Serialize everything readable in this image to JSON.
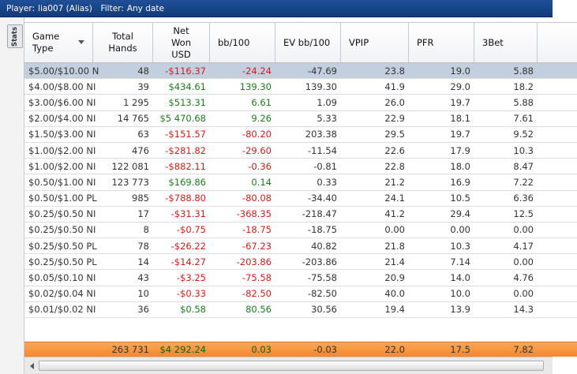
{
  "titlebar": {
    "player_label": "Player:",
    "player_value": "lia007 (Alias)",
    "filter_label": "Filter:",
    "filter_value": "Any date"
  },
  "stats_tab": "Stats",
  "columns": [
    {
      "line1": "Game",
      "line2": "Type"
    },
    {
      "line1": "Total",
      "line2": "Hands"
    },
    {
      "line1": "Net",
      "line2": "Won",
      "line3": "USD"
    },
    {
      "line1": "bb/100"
    },
    {
      "line1": "EV bb/100"
    },
    {
      "line1": "VPIP"
    },
    {
      "line1": "PFR"
    },
    {
      "line1": "3Bet"
    }
  ],
  "rows": [
    [
      "$5.00/$10.00 N",
      "48",
      "-$116.37",
      "-24.24",
      "-47.69",
      "23.8",
      "19.0",
      "5.88"
    ],
    [
      "$4.00/$8.00 NI",
      "39",
      "$434.61",
      "139.30",
      "139.30",
      "41.9",
      "29.0",
      "18.2"
    ],
    [
      "$3.00/$6.00 NI",
      "1 295",
      "$513.31",
      "6.61",
      "1.09",
      "26.0",
      "19.7",
      "5.88"
    ],
    [
      "$2.00/$4.00 NI",
      "14 765",
      "$5 470.68",
      "9.26",
      "5.33",
      "22.9",
      "18.1",
      "7.61"
    ],
    [
      "$1.50/$3.00 NI",
      "63",
      "-$151.57",
      "-80.20",
      "203.38",
      "29.5",
      "19.7",
      "9.52"
    ],
    [
      "$1.00/$2.00 NI",
      "476",
      "-$281.82",
      "-29.60",
      "-11.54",
      "22.6",
      "17.9",
      "10.3"
    ],
    [
      "$1.00/$2.00 NI",
      "122 081",
      "-$882.11",
      "-0.36",
      "-0.81",
      "22.8",
      "18.0",
      "8.47"
    ],
    [
      "$0.50/$1.00 NI",
      "123 773",
      "$169.86",
      "0.14",
      "0.33",
      "21.2",
      "16.9",
      "7.22"
    ],
    [
      "$0.50/$1.00 PL",
      "985",
      "-$788.80",
      "-80.08",
      "-34.40",
      "24.1",
      "10.5",
      "6.36"
    ],
    [
      "$0.25/$0.50 NI",
      "17",
      "-$31.31",
      "-368.35",
      "-218.47",
      "41.2",
      "29.4",
      "12.5"
    ],
    [
      "$0.25/$0.50 NI",
      "8",
      "-$0.75",
      "-18.75",
      "-18.75",
      "0.00",
      "0.00",
      "0.00"
    ],
    [
      "$0.25/$0.50 PL",
      "78",
      "-$26.22",
      "-67.23",
      "40.82",
      "21.8",
      "10.3",
      "4.17"
    ],
    [
      "$0.25/$0.50 PL",
      "14",
      "-$14.27",
      "-203.86",
      "-203.86",
      "21.4",
      "7.14",
      "0.00"
    ],
    [
      "$0.05/$0.10 NI",
      "43",
      "-$3.25",
      "-75.58",
      "-75.58",
      "20.9",
      "14.0",
      "4.76"
    ],
    [
      "$0.02/$0.04 NI",
      "10",
      "-$0.33",
      "-82.50",
      "-82.50",
      "40.0",
      "10.0",
      "0.00"
    ],
    [
      "$0.01/$0.02 NI",
      "36",
      "$0.58",
      "80.56",
      "30.56",
      "19.4",
      "13.9",
      "14.3"
    ]
  ],
  "totals": [
    "",
    "263 731",
    "$4 292.24",
    "0.03",
    "-0.03",
    "22.0",
    "17.5",
    "7.82"
  ],
  "colors": {
    "positive": "#1f7a1f",
    "negative": "#cc1d1d",
    "selected_row": "#c3cfdf",
    "totals_bar": "#f5862c"
  }
}
